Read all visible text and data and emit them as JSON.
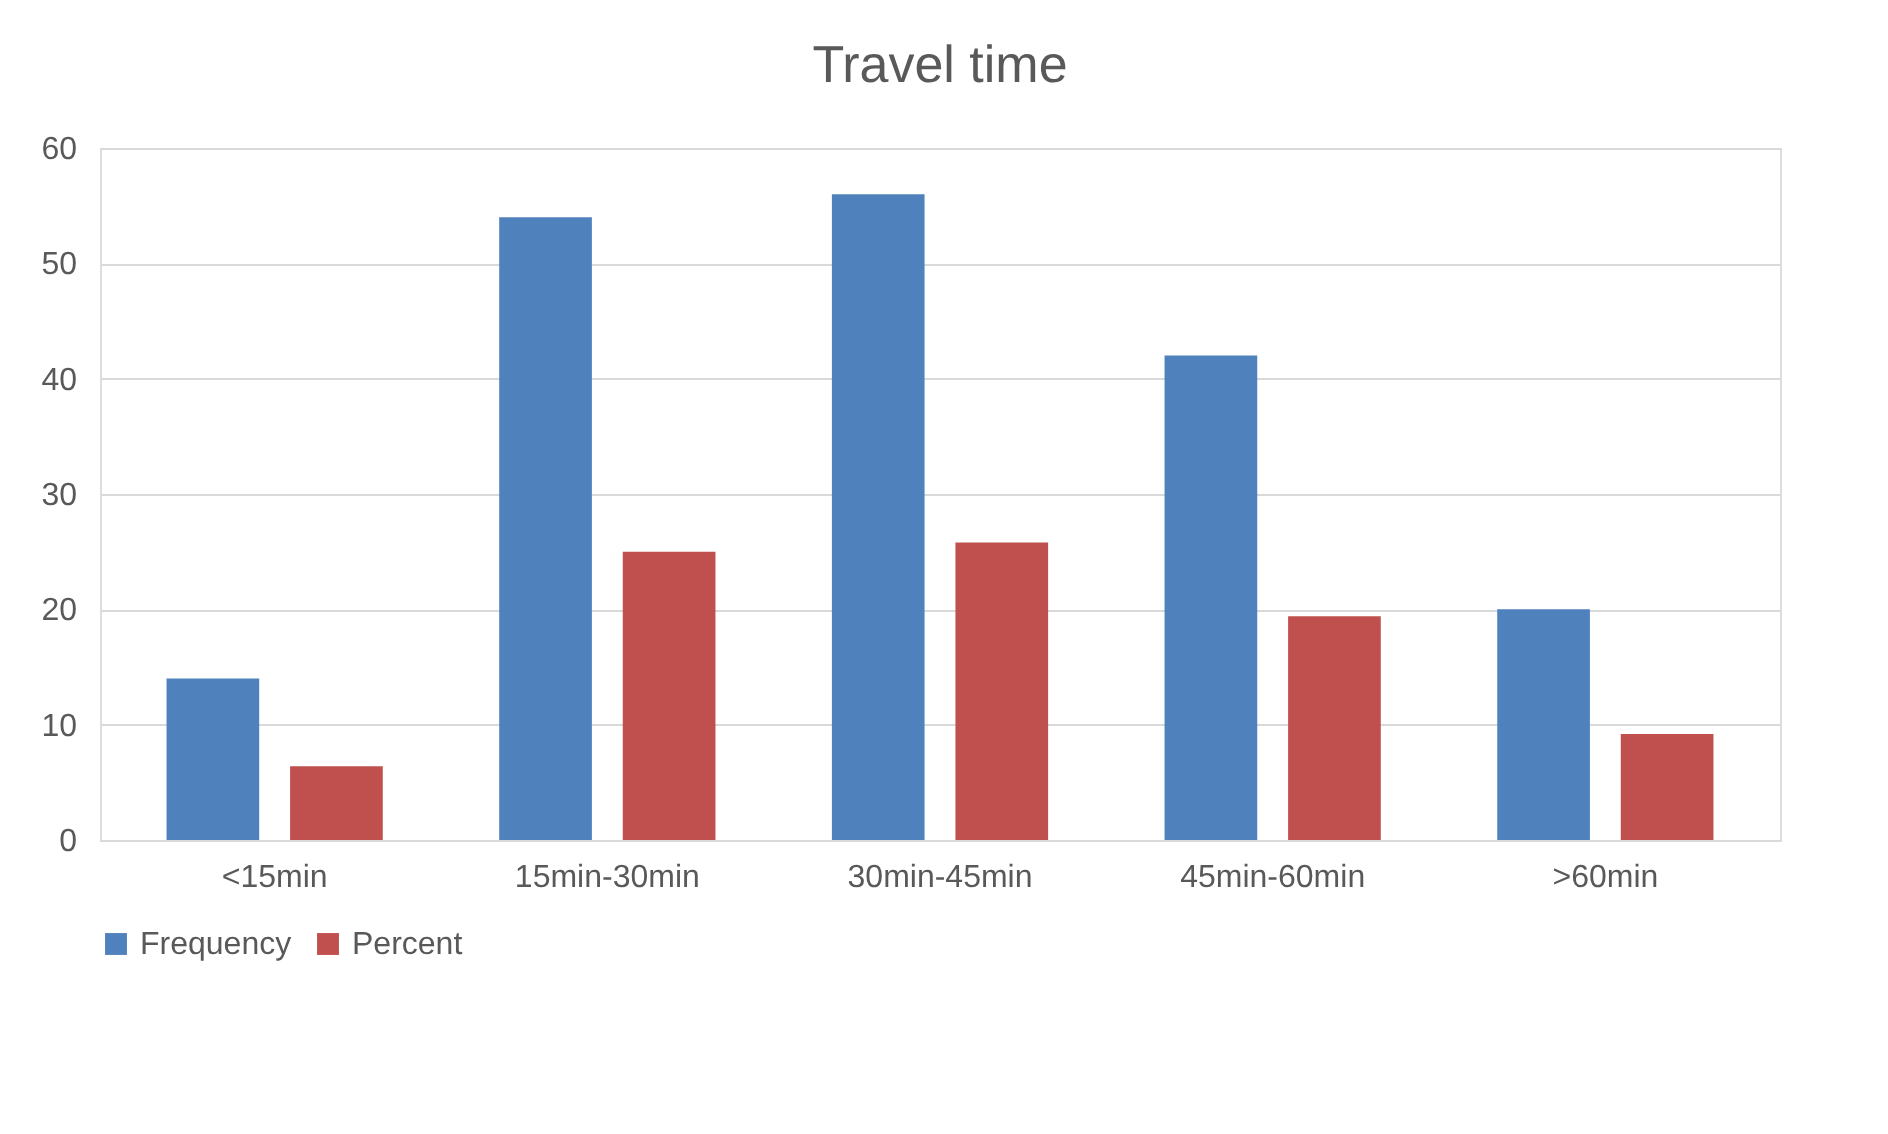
{
  "chart_data": {
    "type": "bar",
    "title": "Travel time",
    "categories": [
      "<15min",
      "15min-30min",
      "30min-45min",
      "45min-60min",
      ">60min"
    ],
    "series": [
      {
        "name": "Frequency",
        "color": "#4f81bd",
        "values": [
          14,
          54,
          56,
          42,
          20
        ]
      },
      {
        "name": "Percent",
        "color": "#c0504d",
        "values": [
          6.4,
          25,
          25.8,
          19.4,
          9.2
        ]
      }
    ],
    "ylim": [
      0,
      60
    ],
    "yticks": [
      0,
      10,
      20,
      30,
      40,
      50,
      60
    ],
    "grid": "y",
    "legend": "bottom"
  }
}
